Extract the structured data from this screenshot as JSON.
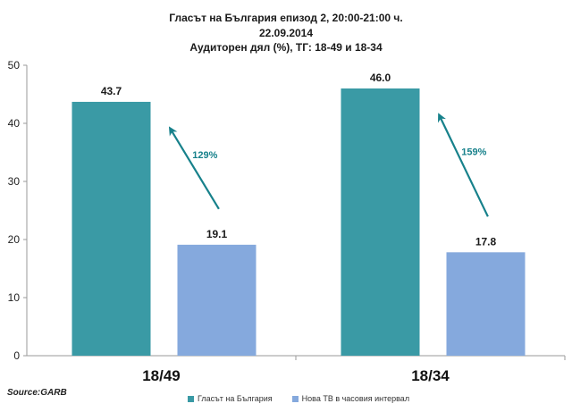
{
  "chart_data": {
    "type": "bar",
    "title_lines": [
      "Гласът на България епизод 2, 20:00-21:00 ч.",
      "22.09.2014",
      "Аудиторен дял (%), ТГ: 18-49 и 18-34"
    ],
    "categories": [
      "18/49",
      "18/34"
    ],
    "series": [
      {
        "name": "Гласът на България",
        "values": [
          43.7,
          46.0
        ],
        "labels": [
          "43.7",
          "46.0"
        ],
        "color": "#3a9aa5"
      },
      {
        "name": "Нова ТВ в часовия интервал",
        "values": [
          19.1,
          17.8
        ],
        "labels": [
          "19.1",
          "17.8"
        ],
        "color": "#85a9dd"
      }
    ],
    "ylim": [
      0,
      50
    ],
    "yticks": [
      0,
      10,
      20,
      30,
      40,
      50
    ],
    "annotations": [
      {
        "category": "18/49",
        "text": "129%"
      },
      {
        "category": "18/34",
        "text": "159%"
      }
    ],
    "annotation_color": "#17818b",
    "grid": false,
    "legend_position": "bottom",
    "source": "Source:GARB"
  }
}
